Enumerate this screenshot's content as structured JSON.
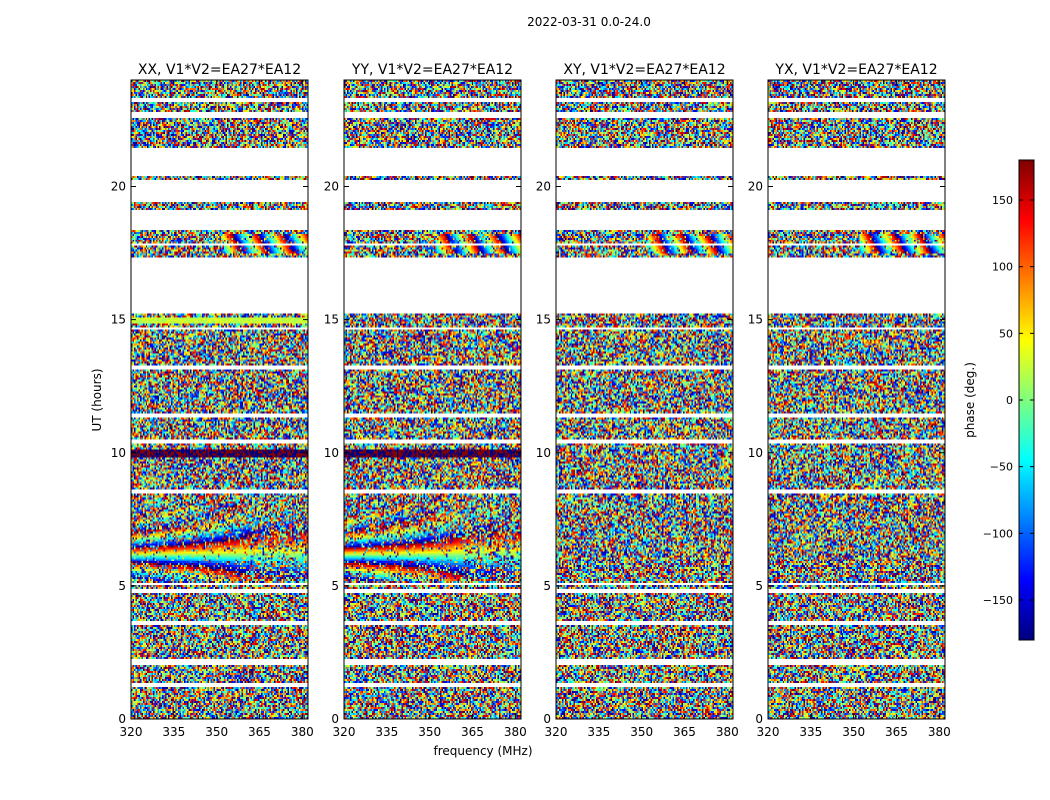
{
  "suptitle": "2022-03-31 0.0-24.0",
  "xlabel": "frequency (MHz)",
  "ylabel": "UT (hours)",
  "colorbar": {
    "label": "phase (deg.)",
    "range": [
      -180,
      180
    ],
    "ticks": [
      150,
      100,
      50,
      0,
      -50,
      -100,
      -150
    ],
    "tick_labels": [
      "150",
      "100",
      "50",
      "0",
      "−50",
      "−100",
      "−150"
    ],
    "colormap": "jet",
    "colors": [
      "#00007f",
      "#0000ff",
      "#007fff",
      "#00ffff",
      "#7fff7f",
      "#ffff00",
      "#ff7f00",
      "#ff0000",
      "#7f0000"
    ]
  },
  "chart_data": {
    "type": "heatmap",
    "title": "2022-03-31 0.0-24.0",
    "xlabel": "frequency (MHz)",
    "ylabel": "UT (hours)",
    "xlim": [
      320,
      382
    ],
    "ylim": [
      0,
      24
    ],
    "xticks": [
      320,
      335,
      350,
      365,
      380
    ],
    "yticks": [
      0,
      5,
      10,
      15,
      20
    ],
    "z_label": "phase (deg.)",
    "z_range": [
      -180,
      180
    ],
    "flagged_gaps_hours": [
      [
        1.2,
        1.35
      ],
      [
        2.05,
        2.25
      ],
      [
        3.55,
        3.7
      ],
      [
        4.7,
        4.85
      ],
      [
        5.05,
        5.1
      ],
      [
        8.5,
        8.65
      ],
      [
        10.35,
        10.5
      ],
      [
        11.35,
        11.45
      ],
      [
        13.1,
        13.3
      ],
      [
        14.6,
        14.7
      ],
      [
        15.2,
        17.35
      ],
      [
        17.75,
        17.85
      ],
      [
        18.35,
        19.1
      ],
      [
        19.45,
        20.25
      ],
      [
        20.4,
        21.45
      ],
      [
        22.55,
        22.8
      ],
      [
        23.2,
        23.3
      ]
    ],
    "panels": [
      {
        "name": "XX, V1*V2=EA27*EA12",
        "pol": "XX",
        "fringe_pattern": true
      },
      {
        "name": "YY, V1*V2=EA27*EA12",
        "pol": "YY",
        "fringe_pattern": true
      },
      {
        "name": "XY, V1*V2=EA27*EA12",
        "pol": "XY",
        "fringe_pattern": false
      },
      {
        "name": "YX, V1*V2=EA27*EA12",
        "pol": "YX",
        "fringe_pattern": false
      }
    ]
  }
}
